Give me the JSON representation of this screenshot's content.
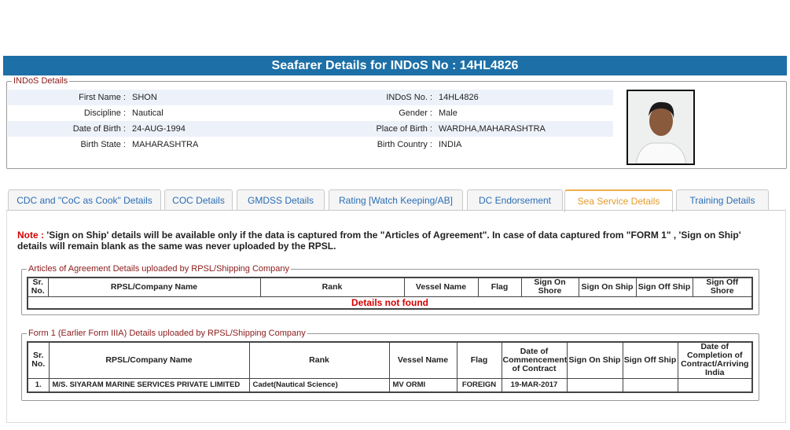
{
  "header": {
    "title": "Seafarer Details for INDoS No : 14HL4826"
  },
  "indos": {
    "legend": "INDoS Details",
    "fields": [
      {
        "label": "First Name :",
        "value": "SHON"
      },
      {
        "label": "INDoS No. :",
        "value": "14HL4826"
      },
      {
        "label": "Discipline :",
        "value": "Nautical"
      },
      {
        "label": "Gender :",
        "value": "Male"
      },
      {
        "label": "Date of Birth :",
        "value": "24-AUG-1994"
      },
      {
        "label": "Place of Birth :",
        "value": "WARDHA,MAHARASHTRA"
      },
      {
        "label": "Birth State :",
        "value": "MAHARASHTRA"
      },
      {
        "label": "Birth Country :",
        "value": "INDIA"
      }
    ]
  },
  "tabs": [
    "CDC and \"CoC as Cook\" Details",
    "COC Details",
    "GMDSS Details",
    "Rating [Watch Keeping/AB]",
    "DC Endorsement",
    "Sea Service Details",
    "Training Details"
  ],
  "note": {
    "label": "Note :",
    "text": "'Sign on Ship' details will be available only if the data is captured from the \"Articles of Agreement\". In case of data captured from \"FORM 1\" , 'Sign on Ship' details will remain blank as the same was never uploaded by the RPSL."
  },
  "articles": {
    "legend": "Articles of Agreement Details uploaded by RPSL/Shipping Company",
    "columns": [
      "Sr. No.",
      "RPSL/Company Name",
      "Rank",
      "Vessel Name",
      "Flag",
      "Sign On Shore",
      "Sign On Ship",
      "Sign Off Ship",
      "Sign Off Shore"
    ],
    "empty": "Details not found"
  },
  "form1": {
    "legend": "Form 1 (Earlier Form IIIA) Details uploaded by RPSL/Shipping Company",
    "columns": [
      "Sr. No.",
      "RPSL/Company Name",
      "Rank",
      "Vessel Name",
      "Flag",
      "Date of Commencement of Contract",
      "Sign On Ship",
      "Sign Off Ship",
      "Date of Completion of Contract/Arriving India"
    ],
    "rows": [
      [
        "1.",
        "M/S. SIYARAM MARINE SERVICES PRIVATE LIMITED",
        "Cadet(Nautical Science)",
        "MV ORMI",
        "FOREIGN",
        "19-MAR-2017",
        null,
        null,
        null
      ]
    ]
  }
}
